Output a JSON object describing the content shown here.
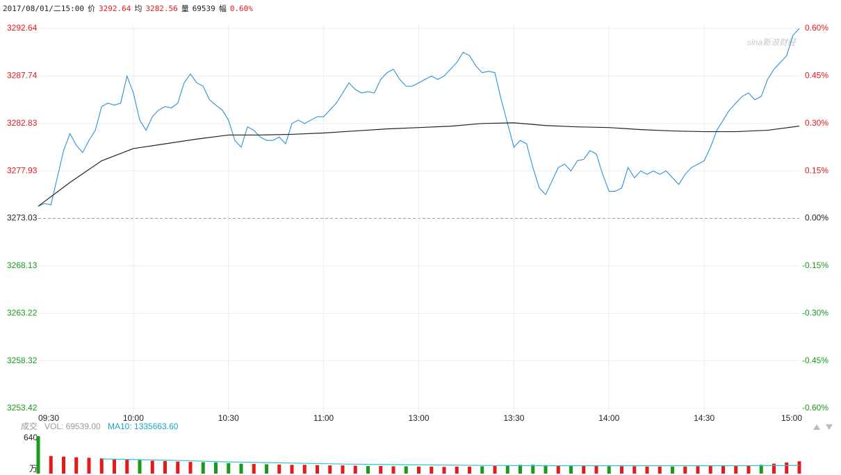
{
  "header": {
    "datetime": "2017/08/01/二15:00",
    "price_label": "价",
    "price": "3292.64",
    "avg_label": "均",
    "avg": "3282.56",
    "vol_label": "量",
    "vol": "69539",
    "change_label": "幅",
    "change": "0.60%"
  },
  "watermark": "sina新浪财经",
  "chart_data": [
    {
      "type": "line",
      "xlim": [
        0,
        240
      ],
      "xticks": [
        {
          "value": 0,
          "label": "09:30"
        },
        {
          "value": 30,
          "label": "10:00"
        },
        {
          "value": 60,
          "label": "10:30"
        },
        {
          "value": 90,
          "label": "11:00"
        },
        {
          "value": 120,
          "label": "13:00"
        },
        {
          "value": 150,
          "label": "13:30"
        },
        {
          "value": 180,
          "label": "14:00"
        },
        {
          "value": 210,
          "label": "14:30"
        },
        {
          "value": 240,
          "label": "15:00"
        }
      ],
      "ylim": [
        3253.42,
        3292.64
      ],
      "yticks": [
        3292.64,
        3287.74,
        3282.83,
        3277.93,
        3273.03,
        3268.13,
        3263.22,
        3258.32,
        3253.42
      ],
      "y2lim": [
        -0.6,
        0.6
      ],
      "y2ticks": [
        {
          "value": 0.6,
          "label": "0.60%"
        },
        {
          "value": 0.45,
          "label": "0.45%"
        },
        {
          "value": 0.3,
          "label": "0.30%"
        },
        {
          "value": 0.15,
          "label": "0.15%"
        },
        {
          "value": 0,
          "label": "0.00%"
        },
        {
          "value": -0.15,
          "label": "-0.15%"
        },
        {
          "value": -0.3,
          "label": "-0.30%"
        },
        {
          "value": -0.45,
          "label": "-0.45%"
        },
        {
          "value": -0.6,
          "label": "-0.60%"
        }
      ],
      "up_color": "#e4191c",
      "down_color": "#1a9a1a",
      "flat_color": "#222222",
      "grid": true,
      "series": [
        {
          "color": "#2b8fd8",
          "x": [
            0,
            2,
            4,
            6,
            8,
            10,
            12,
            14,
            16,
            18,
            20,
            22,
            24,
            26,
            28,
            30,
            32,
            34,
            36,
            38,
            40,
            42,
            44,
            46,
            48,
            50,
            52,
            54,
            56,
            58,
            60,
            62,
            64,
            66,
            68,
            70,
            72,
            74,
            76,
            78,
            80,
            82,
            84,
            86,
            88,
            90,
            92,
            94,
            96,
            98,
            100,
            102,
            104,
            106,
            108,
            110,
            112,
            114,
            116,
            118,
            120,
            122,
            124,
            126,
            128,
            130,
            132,
            134,
            136,
            138,
            140,
            142,
            144,
            146,
            148,
            150,
            152,
            154,
            156,
            158,
            160,
            162,
            164,
            166,
            168,
            170,
            172,
            174,
            176,
            178,
            180,
            182,
            184,
            186,
            188,
            190,
            192,
            194,
            196,
            198,
            200,
            202,
            204,
            206,
            208,
            210,
            212,
            214,
            216,
            218,
            220,
            222,
            224,
            226,
            228,
            230,
            232,
            234,
            236,
            238,
            240
          ],
          "values": [
            3274.29,
            3274.57,
            3274.43,
            3277.23,
            3280.03,
            3281.78,
            3280.59,
            3279.82,
            3281.08,
            3282.13,
            3284.58,
            3284.93,
            3284.72,
            3284.93,
            3287.73,
            3285.98,
            3283.18,
            3282.13,
            3283.53,
            3284.23,
            3284.58,
            3284.44,
            3284.93,
            3287.03,
            3287.94,
            3287.03,
            3286.68,
            3285.28,
            3284.72,
            3284.23,
            3283.18,
            3281.08,
            3280.38,
            3282.48,
            3282.13,
            3281.43,
            3281.08,
            3281.08,
            3281.43,
            3280.73,
            3282.83,
            3283.18,
            3282.83,
            3283.18,
            3283.53,
            3283.53,
            3284.23,
            3284.93,
            3285.98,
            3287.03,
            3286.33,
            3285.98,
            3286.12,
            3285.98,
            3287.38,
            3288.08,
            3288.43,
            3287.38,
            3286.68,
            3286.68,
            3287.03,
            3287.38,
            3287.73,
            3287.38,
            3287.73,
            3288.43,
            3289.13,
            3290.18,
            3289.83,
            3288.78,
            3288.08,
            3288.22,
            3288.08,
            3285.28,
            3282.83,
            3280.38,
            3281.08,
            3280.73,
            3278.28,
            3276.18,
            3275.48,
            3276.88,
            3278.28,
            3278.63,
            3277.93,
            3278.98,
            3279.12,
            3280.03,
            3279.68,
            3277.58,
            3275.83,
            3275.83,
            3276.18,
            3278.28,
            3277.23,
            3277.93,
            3277.58,
            3277.93,
            3277.58,
            3277.93,
            3277.23,
            3276.53,
            3277.58,
            3278.28,
            3278.63,
            3278.98,
            3280.38,
            3282.13,
            3283.18,
            3284.23,
            3284.93,
            3285.63,
            3285.98,
            3285.28,
            3285.63,
            3287.38,
            3288.43,
            3289.13,
            3289.83,
            3291.93,
            3292.64
          ]
        },
        {
          "color": "#222222",
          "x": [
            0,
            10,
            20,
            30,
            40,
            50,
            60,
            70,
            80,
            90,
            100,
            110,
            120,
            130,
            140,
            150,
            160,
            170,
            180,
            190,
            200,
            210,
            220,
            230,
            240
          ],
          "values": [
            3274.29,
            3276.74,
            3278.98,
            3280.24,
            3280.73,
            3281.22,
            3281.64,
            3281.64,
            3281.71,
            3281.85,
            3282.06,
            3282.27,
            3282.41,
            3282.55,
            3282.83,
            3282.9,
            3282.62,
            3282.48,
            3282.41,
            3282.2,
            3282.06,
            3281.99,
            3281.99,
            3282.13,
            3282.56
          ]
        }
      ]
    },
    {
      "type": "bar",
      "caption": "成交",
      "vol_text": "VOL: 69539.00",
      "ma_text": "MA10: 1335663.60",
      "ma_color": "#1aa3c7",
      "unit": "万",
      "xlim": [
        0,
        240
      ],
      "ylim": [
        0,
        640
      ],
      "yticks": [
        640
      ],
      "series": [
        {
          "x": [
            0,
            4,
            8,
            12,
            16,
            20,
            24,
            28,
            32,
            36,
            40,
            44,
            48,
            52,
            56,
            60,
            64,
            68,
            72,
            76,
            80,
            84,
            88,
            92,
            96,
            100,
            104,
            108,
            112,
            116,
            120,
            124,
            128,
            132,
            136,
            140,
            144,
            148,
            152,
            156,
            160,
            164,
            168,
            172,
            176,
            180,
            184,
            188,
            192,
            196,
            200,
            204,
            208,
            212,
            216,
            220,
            224,
            228,
            232,
            236,
            240
          ],
          "values": [
            640,
            300,
            290,
            280,
            270,
            260,
            250,
            240,
            230,
            220,
            215,
            205,
            200,
            195,
            190,
            180,
            170,
            165,
            160,
            155,
            150,
            150,
            145,
            140,
            140,
            135,
            130,
            130,
            125,
            125,
            120,
            120,
            115,
            120,
            120,
            125,
            130,
            140,
            150,
            150,
            145,
            140,
            135,
            130,
            130,
            125,
            125,
            125,
            120,
            120,
            120,
            120,
            125,
            130,
            130,
            135,
            140,
            150,
            170,
            190,
            210
          ],
          "colors": [
            "#1a9a1a",
            "#e4191c",
            "#e4191c",
            "#e4191c",
            "#e4191c",
            "#e4191c",
            "#e4191c",
            "#e4191c",
            "#1a9a1a",
            "#e4191c",
            "#e4191c",
            "#e4191c",
            "#e4191c",
            "#1a9a1a",
            "#1a9a1a",
            "#1a9a1a",
            "#1a9a1a",
            "#e4191c",
            "#1a9a1a",
            "#e4191c",
            "#e4191c",
            "#e4191c",
            "#e4191c",
            "#e4191c",
            "#e4191c",
            "#e4191c",
            "#1a9a1a",
            "#e4191c",
            "#e4191c",
            "#1a9a1a",
            "#e4191c",
            "#e4191c",
            "#e4191c",
            "#e4191c",
            "#e4191c",
            "#1a9a1a",
            "#e4191c",
            "#1a9a1a",
            "#1a9a1a",
            "#1a9a1a",
            "#1a9a1a",
            "#e4191c",
            "#1a9a1a",
            "#e4191c",
            "#e4191c",
            "#1a9a1a",
            "#e4191c",
            "#e4191c",
            "#e4191c",
            "#e4191c",
            "#1a9a1a",
            "#e4191c",
            "#e4191c",
            "#e4191c",
            "#e4191c",
            "#e4191c",
            "#e4191c",
            "#1a9a1a",
            "#e4191c",
            "#e4191c",
            "#e4191c"
          ]
        },
        {
          "type": "line",
          "color": "#2cc3d6",
          "x": [
            20,
            40,
            60,
            80,
            100,
            120,
            140,
            160,
            180,
            200,
            220,
            240
          ],
          "values": [
            250,
            230,
            200,
            180,
            160,
            150,
            140,
            135,
            135,
            135,
            135,
            140
          ]
        }
      ]
    }
  ]
}
